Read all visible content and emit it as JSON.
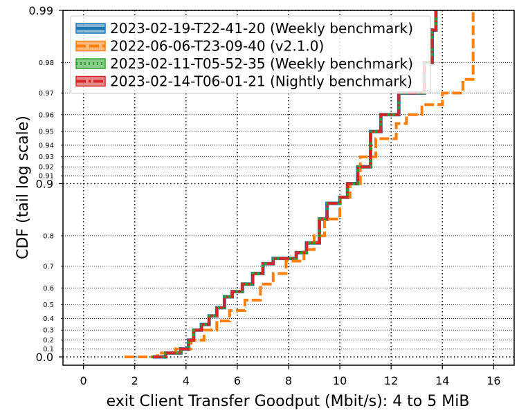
{
  "chart_data": {
    "type": "line",
    "title": "",
    "xlabel": "exit Client Transfer Goodput (Mbit/s): 4 to 5 MiB",
    "ylabel": "CDF (tail log scale)",
    "xlim": [
      -0.8,
      16.8
    ],
    "xticks": [
      0,
      2,
      4,
      6,
      8,
      10,
      12,
      14,
      16
    ],
    "xtick_labels": [
      "0",
      "2",
      "4",
      "6",
      "8",
      "10",
      "12",
      "14",
      "16"
    ],
    "y_scale": "tail-log",
    "yticks_major": [
      {
        "value": 0.0,
        "label": "0.0"
      },
      {
        "value": 0.9,
        "label": "0.9"
      },
      {
        "value": 0.99,
        "label": "0.99"
      }
    ],
    "yticks_minor": [
      {
        "value": 0.1,
        "label": "0.1"
      },
      {
        "value": 0.2,
        "label": "0.2"
      },
      {
        "value": 0.3,
        "label": "0.3"
      },
      {
        "value": 0.4,
        "label": "0.4"
      },
      {
        "value": 0.5,
        "label": "0.5"
      },
      {
        "value": 0.6,
        "label": "0.6"
      },
      {
        "value": 0.7,
        "label": "0.7"
      },
      {
        "value": 0.8,
        "label": "0.8"
      },
      {
        "value": 0.91,
        "label": "0.91"
      },
      {
        "value": 0.92,
        "label": "0.92"
      },
      {
        "value": 0.93,
        "label": "0.93"
      },
      {
        "value": 0.94,
        "label": "0.94"
      },
      {
        "value": 0.95,
        "label": "0.95"
      },
      {
        "value": 0.96,
        "label": "0.96"
      },
      {
        "value": 0.97,
        "label": "0.97"
      },
      {
        "value": 0.98,
        "label": "0.98"
      }
    ],
    "grid": true,
    "legend_position": "top-left",
    "series": [
      {
        "name": "2023-02-19-T22-41-20 (Weekly benchmark)",
        "color": "#1f77b4",
        "style": "solid",
        "x": [
          2.7,
          3.2,
          3.8,
          4.1,
          4.3,
          4.6,
          4.9,
          5.2,
          5.5,
          5.8,
          6.2,
          6.6,
          7.0,
          7.4,
          8.3,
          8.7,
          9.2,
          9.5,
          10.0,
          10.3,
          10.7,
          11.2,
          11.6,
          12.3,
          13.3,
          13.6,
          13.75
        ],
        "y": [
          0.0,
          0.05,
          0.1,
          0.2,
          0.3,
          0.35,
          0.42,
          0.48,
          0.55,
          0.58,
          0.62,
          0.67,
          0.71,
          0.73,
          0.75,
          0.78,
          0.84,
          0.87,
          0.88,
          0.9,
          0.92,
          0.95,
          0.96,
          0.97,
          0.98,
          0.987,
          0.99
        ]
      },
      {
        "name": "2022-06-06-T23-09-40 (v2.1.0)",
        "color": "#ff7f0e",
        "style": "dashed",
        "x": [
          1.6,
          2.9,
          3.6,
          4.2,
          4.7,
          5.2,
          5.7,
          6.3,
          6.9,
          7.4,
          7.9,
          8.6,
          9.0,
          9.4,
          10.0,
          10.4,
          10.8,
          11.4,
          12.2,
          12.6,
          13.2,
          14.0,
          14.8,
          15.2
        ],
        "y": [
          0.0,
          0.05,
          0.1,
          0.2,
          0.3,
          0.38,
          0.46,
          0.53,
          0.62,
          0.67,
          0.72,
          0.76,
          0.8,
          0.84,
          0.88,
          0.9,
          0.93,
          0.945,
          0.955,
          0.96,
          0.965,
          0.97,
          0.975,
          0.99
        ]
      },
      {
        "name": "2023-02-11-T05-52-35 (Weekly benchmark)",
        "color": "#2ca02c",
        "style": "dotted",
        "x": [
          2.7,
          3.2,
          3.8,
          4.1,
          4.3,
          4.6,
          4.9,
          5.2,
          5.5,
          5.8,
          6.2,
          6.6,
          7.0,
          7.4,
          8.3,
          8.7,
          9.2,
          9.5,
          10.0,
          10.3,
          10.7,
          11.2,
          11.6,
          12.3,
          13.3,
          13.6,
          13.75
        ],
        "y": [
          0.0,
          0.05,
          0.1,
          0.2,
          0.3,
          0.35,
          0.42,
          0.48,
          0.55,
          0.58,
          0.62,
          0.67,
          0.71,
          0.73,
          0.75,
          0.78,
          0.84,
          0.87,
          0.88,
          0.9,
          0.92,
          0.95,
          0.96,
          0.97,
          0.98,
          0.987,
          0.99
        ]
      },
      {
        "name": "2023-02-14-T06-01-21 (Nightly benchmark)",
        "color": "#d62728",
        "style": "dashdot",
        "x": [
          2.7,
          3.2,
          3.8,
          4.1,
          4.3,
          4.6,
          4.9,
          5.2,
          5.5,
          5.8,
          6.2,
          6.6,
          7.0,
          7.4,
          8.3,
          8.7,
          9.2,
          9.5,
          10.0,
          10.3,
          10.7,
          11.2,
          11.6,
          12.3,
          13.3,
          13.6,
          13.75
        ],
        "y": [
          0.0,
          0.05,
          0.1,
          0.2,
          0.3,
          0.35,
          0.42,
          0.48,
          0.55,
          0.58,
          0.62,
          0.67,
          0.71,
          0.73,
          0.75,
          0.78,
          0.84,
          0.87,
          0.88,
          0.9,
          0.92,
          0.95,
          0.96,
          0.97,
          0.98,
          0.987,
          0.99
        ]
      }
    ]
  }
}
